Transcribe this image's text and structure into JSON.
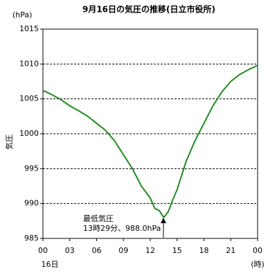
{
  "chart_data": {
    "type": "line",
    "title": "9月16日の気圧の推移(日立市役所)",
    "y_unit": "(hPa)",
    "y_label": "気圧",
    "x_unit": "(時)",
    "date_label": "16日",
    "annotation": [
      "最低気圧",
      "13時29分、988.0hPa"
    ],
    "x": [
      0,
      1,
      2,
      3,
      4,
      5,
      6,
      7,
      8,
      9,
      10,
      11,
      12,
      12.5,
      13,
      13.5,
      14,
      14.5,
      15,
      16,
      17,
      18,
      19,
      20,
      21,
      22,
      23,
      24
    ],
    "series": [
      {
        "name": "気圧",
        "color": "#1e8c1e",
        "values": [
          1006.2,
          1005.6,
          1004.9,
          1004.0,
          1003.3,
          1002.5,
          1001.5,
          1000.5,
          999.0,
          997.0,
          995.0,
          992.5,
          990.8,
          989.3,
          989.0,
          988.0,
          988.8,
          990.5,
          992.0,
          996.0,
          999.0,
          1001.5,
          1004.0,
          1006.0,
          1007.5,
          1008.5,
          1009.2,
          1009.8
        ]
      }
    ],
    "xlim": [
      0,
      24
    ],
    "xticks": [
      {
        "value": 0,
        "label": "00"
      },
      {
        "value": 3,
        "label": "03"
      },
      {
        "value": 6,
        "label": "06"
      },
      {
        "value": 9,
        "label": "09"
      },
      12,
      15,
      18,
      21,
      {
        "value": 24,
        "label": "00"
      }
    ],
    "ylim": [
      985,
      1015
    ],
    "yticks": [
      985,
      990,
      995,
      1000,
      1005,
      1010,
      1015
    ],
    "grid": true
  }
}
